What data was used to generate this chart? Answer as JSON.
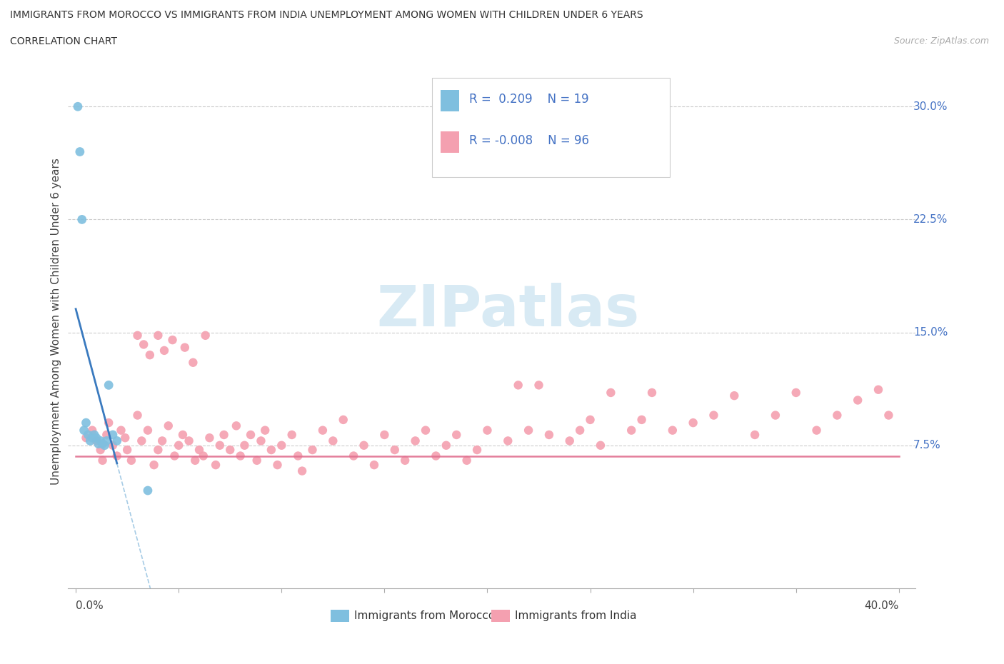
{
  "title_line1": "IMMIGRANTS FROM MOROCCO VS IMMIGRANTS FROM INDIA UNEMPLOYMENT AMONG WOMEN WITH CHILDREN UNDER 6 YEARS",
  "title_line2": "CORRELATION CHART",
  "source": "Source: ZipAtlas.com",
  "ylabel": "Unemployment Among Women with Children Under 6 years",
  "color_morocco": "#7fbfdf",
  "color_india": "#f4a0b0",
  "color_trendline_morocco": "#3a7abf",
  "color_trendline_india": "#e07090",
  "watermark_color": "#d8eaf4",
  "xlim": [
    0.0,
    0.4
  ],
  "ylim": [
    0.0,
    0.32
  ],
  "ytick_vals": [
    0.075,
    0.15,
    0.225,
    0.3
  ],
  "ytick_strs": [
    "7.5%",
    "15.0%",
    "22.5%",
    "30.0%"
  ],
  "xtick_vals": [
    0.0,
    0.05,
    0.1,
    0.15,
    0.2,
    0.25,
    0.3,
    0.35,
    0.4
  ],
  "morocco_x": [
    0.001,
    0.002,
    0.003,
    0.004,
    0.005,
    0.006,
    0.007,
    0.008,
    0.009,
    0.01,
    0.011,
    0.012,
    0.013,
    0.014,
    0.015,
    0.016,
    0.018,
    0.02,
    0.035
  ],
  "morocco_y": [
    0.3,
    0.27,
    0.225,
    0.085,
    0.09,
    0.082,
    0.078,
    0.08,
    0.082,
    0.08,
    0.076,
    0.078,
    0.076,
    0.075,
    0.078,
    0.115,
    0.082,
    0.078,
    0.045
  ],
  "india_x": [
    0.005,
    0.008,
    0.01,
    0.012,
    0.013,
    0.015,
    0.016,
    0.018,
    0.02,
    0.022,
    0.024,
    0.025,
    0.027,
    0.03,
    0.032,
    0.035,
    0.038,
    0.04,
    0.042,
    0.045,
    0.048,
    0.05,
    0.052,
    0.055,
    0.058,
    0.06,
    0.062,
    0.065,
    0.068,
    0.07,
    0.072,
    0.075,
    0.078,
    0.08,
    0.082,
    0.085,
    0.088,
    0.09,
    0.092,
    0.095,
    0.098,
    0.1,
    0.105,
    0.108,
    0.11,
    0.115,
    0.12,
    0.125,
    0.13,
    0.135,
    0.14,
    0.145,
    0.15,
    0.155,
    0.16,
    0.165,
    0.17,
    0.175,
    0.18,
    0.185,
    0.19,
    0.195,
    0.2,
    0.21,
    0.215,
    0.22,
    0.225,
    0.23,
    0.24,
    0.245,
    0.25,
    0.255,
    0.26,
    0.27,
    0.275,
    0.28,
    0.29,
    0.3,
    0.31,
    0.32,
    0.33,
    0.34,
    0.35,
    0.36,
    0.37,
    0.38,
    0.39,
    0.395,
    0.03,
    0.033,
    0.036,
    0.04,
    0.043,
    0.047,
    0.053,
    0.057,
    0.063
  ],
  "india_y": [
    0.08,
    0.085,
    0.078,
    0.072,
    0.065,
    0.082,
    0.09,
    0.075,
    0.068,
    0.085,
    0.08,
    0.072,
    0.065,
    0.095,
    0.078,
    0.085,
    0.062,
    0.072,
    0.078,
    0.088,
    0.068,
    0.075,
    0.082,
    0.078,
    0.065,
    0.072,
    0.068,
    0.08,
    0.062,
    0.075,
    0.082,
    0.072,
    0.088,
    0.068,
    0.075,
    0.082,
    0.065,
    0.078,
    0.085,
    0.072,
    0.062,
    0.075,
    0.082,
    0.068,
    0.058,
    0.072,
    0.085,
    0.078,
    0.092,
    0.068,
    0.075,
    0.062,
    0.082,
    0.072,
    0.065,
    0.078,
    0.085,
    0.068,
    0.075,
    0.082,
    0.065,
    0.072,
    0.085,
    0.078,
    0.115,
    0.085,
    0.115,
    0.082,
    0.078,
    0.085,
    0.092,
    0.075,
    0.11,
    0.085,
    0.092,
    0.11,
    0.085,
    0.09,
    0.095,
    0.108,
    0.082,
    0.095,
    0.11,
    0.085,
    0.095,
    0.105,
    0.112,
    0.095,
    0.148,
    0.142,
    0.135,
    0.148,
    0.138,
    0.145,
    0.14,
    0.13,
    0.148
  ]
}
